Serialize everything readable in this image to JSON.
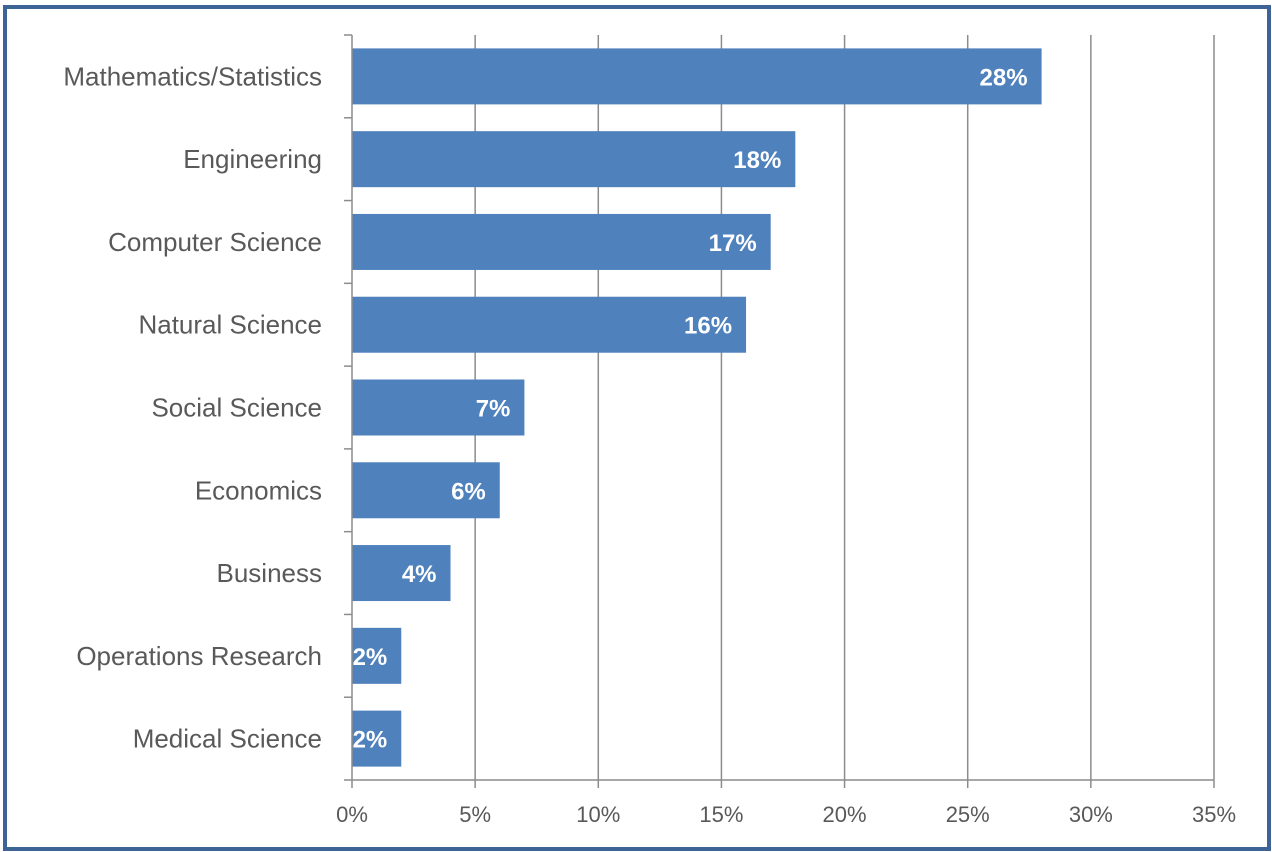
{
  "chart_data": {
    "type": "bar",
    "orientation": "horizontal",
    "categories": [
      "Mathematics/Statistics",
      "Engineering",
      "Computer Science",
      "Natural Science",
      "Social Science",
      "Economics",
      "Business",
      "Operations Research",
      "Medical Science"
    ],
    "values": [
      28,
      18,
      17,
      16,
      7,
      6,
      4,
      2,
      2
    ],
    "data_labels": [
      "28%",
      "18%",
      "17%",
      "16%",
      "7%",
      "6%",
      "4%",
      "2%",
      "2%"
    ],
    "x_ticks": [
      "0%",
      "5%",
      "10%",
      "15%",
      "20%",
      "25%",
      "30%",
      "35%"
    ],
    "xlim": [
      0,
      35
    ],
    "x_tick_step": 5,
    "grid": "vertical",
    "legend": "none",
    "title": "",
    "xlabel": "",
    "ylabel": ""
  },
  "colors": {
    "bar": "#4F81BD",
    "grid": "#8C8C8C",
    "frame": "#3E6497",
    "text": "#595959"
  }
}
